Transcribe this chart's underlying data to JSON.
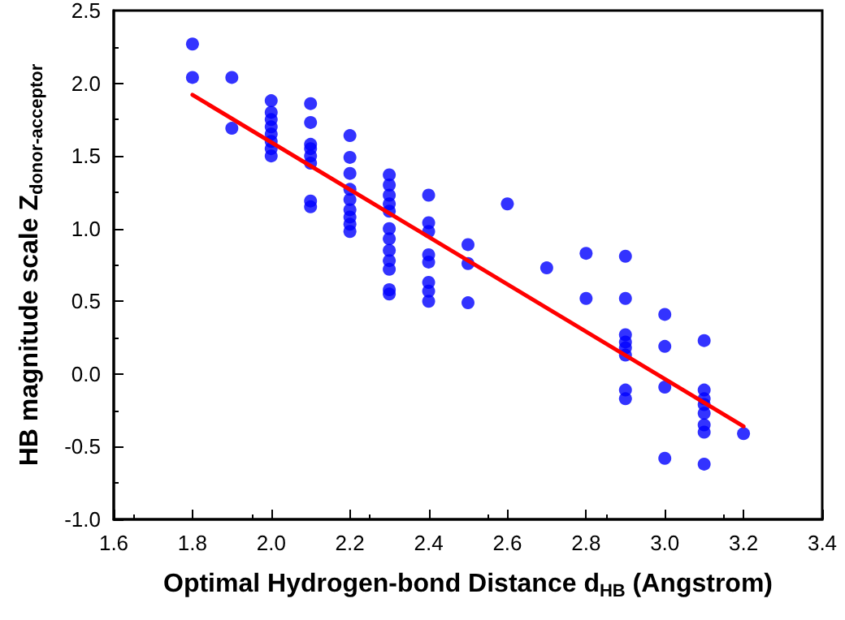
{
  "chart_data": {
    "type": "scatter",
    "xlabel": "Optimal Hydrogen-bond Distance d$_{HB}$ (Angstrom)",
    "ylabel": "HB magnitude scale Z$_{donor-acceptor}$",
    "xlim": [
      1.6,
      3.4
    ],
    "xticks": [
      1.6,
      1.8,
      {
        "value": 2,
        "label": "2.0"
      },
      2.2,
      2.4,
      2.6,
      2.8,
      {
        "value": 3,
        "label": "3.0"
      },
      3.2,
      3.4
    ],
    "ylim": [
      -1.0,
      2.5
    ],
    "yticks": [
      {
        "value": -1,
        "label": "-1.0"
      },
      -0.5,
      {
        "value": 0,
        "label": "0.0"
      },
      0.5,
      {
        "value": 1,
        "label": "1.0"
      },
      1.5,
      {
        "value": 2,
        "label": "2.0"
      },
      2.5
    ],
    "grid": false,
    "marker": "circle",
    "series": [
      {
        "color": "#0000ff",
        "x": [
          1.8,
          1.8,
          1.9,
          1.9,
          2.0,
          2.0,
          2.0,
          2.0,
          2.0,
          2.0,
          2.0,
          2.0,
          2.1,
          2.1,
          2.1,
          2.1,
          2.1,
          2.1,
          2.1,
          2.1,
          2.2,
          2.2,
          2.2,
          2.2,
          2.2,
          2.2,
          2.2,
          2.2,
          2.2,
          2.3,
          2.3,
          2.3,
          2.3,
          2.3,
          2.3,
          2.3,
          2.3,
          2.3,
          2.3,
          2.3,
          2.3,
          2.4,
          2.4,
          2.4,
          2.4,
          2.4,
          2.4,
          2.4,
          2.4,
          2.5,
          2.5,
          2.5,
          2.6,
          2.7,
          2.8,
          2.8,
          2.9,
          2.9,
          2.9,
          2.9,
          2.9,
          2.9,
          2.9,
          2.9,
          3.0,
          3.0,
          3.0,
          3.0,
          3.1,
          3.1,
          3.1,
          3.1,
          3.1,
          3.1,
          3.1,
          3.1,
          3.2
        ],
        "values": [
          2.27,
          2.04,
          2.04,
          1.69,
          1.88,
          1.8,
          1.75,
          1.7,
          1.65,
          1.6,
          1.55,
          1.5,
          1.86,
          1.73,
          1.58,
          1.55,
          1.5,
          1.45,
          1.19,
          1.15,
          1.64,
          1.49,
          1.38,
          1.27,
          1.2,
          1.13,
          1.08,
          1.03,
          0.98,
          1.37,
          1.3,
          1.23,
          1.17,
          1.12,
          1.0,
          0.93,
          0.85,
          0.78,
          0.72,
          0.58,
          0.55,
          1.23,
          1.04,
          0.98,
          0.82,
          0.77,
          0.63,
          0.57,
          0.5,
          0.89,
          0.76,
          0.49,
          1.17,
          0.73,
          0.83,
          0.52,
          0.81,
          0.52,
          0.27,
          0.22,
          0.18,
          0.13,
          -0.11,
          -0.17,
          0.41,
          0.19,
          -0.09,
          -0.58,
          0.23,
          -0.11,
          -0.17,
          -0.21,
          -0.27,
          -0.35,
          -0.4,
          -0.62,
          -0.41
        ]
      },
      {
        "type": "line",
        "color": "#ff0000",
        "marker": "none",
        "line_style": "solid",
        "x": [
          1.8,
          3.2
        ],
        "values": [
          1.92,
          -0.36
        ]
      }
    ]
  }
}
